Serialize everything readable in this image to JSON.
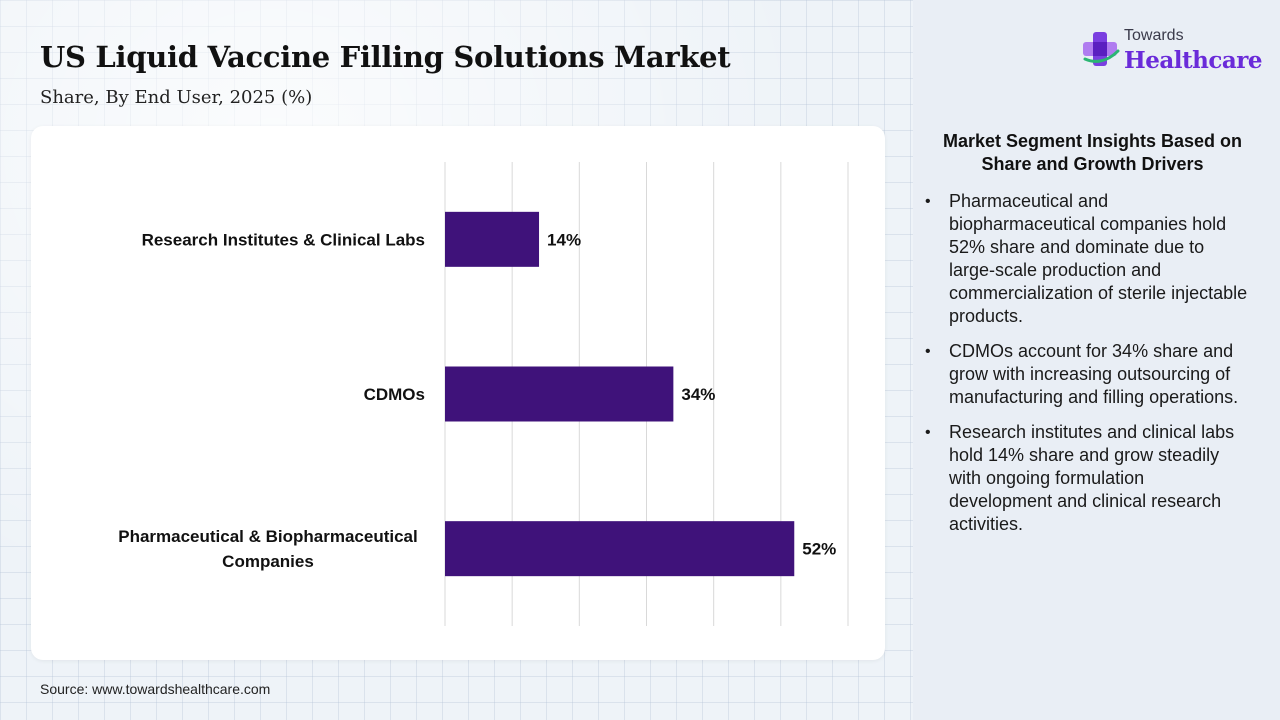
{
  "title": "US Liquid Vaccine Filling Solutions Market",
  "subtitle": "Share, By End User, 2025 (%)",
  "source": "Source: www.towardshealthcare.com",
  "logo": {
    "top": "Towards",
    "bottom": "Healthcare"
  },
  "insights": {
    "title": "Market Segment Insights Based on Share and Growth Drivers",
    "bullets": [
      "Pharmaceutical and biopharmaceutical companies hold 52% share and dominate due to large-scale production and commercialization of sterile injectable products.",
      "CDMOs account for 34% share and grow with increasing outsourcing of manufacturing and filling operations.",
      "Research institutes and clinical labs hold 14% share and grow steadily with ongoing formulation development and clinical research activities."
    ]
  },
  "colors": {
    "bar": "#3f127a",
    "logo_accent": "#6a2bd9"
  },
  "chart_data": {
    "type": "bar",
    "orientation": "horizontal",
    "categories": [
      [
        "Research Institutes & Clinical Labs"
      ],
      [
        "CDMOs"
      ],
      [
        "Pharmaceutical & Biopharmaceutical",
        "Companies"
      ]
    ],
    "values": [
      14,
      34,
      52
    ],
    "value_labels": [
      "14%",
      "34%",
      "52%"
    ],
    "xlim": [
      0,
      60
    ],
    "grid": true,
    "legend": "none"
  }
}
